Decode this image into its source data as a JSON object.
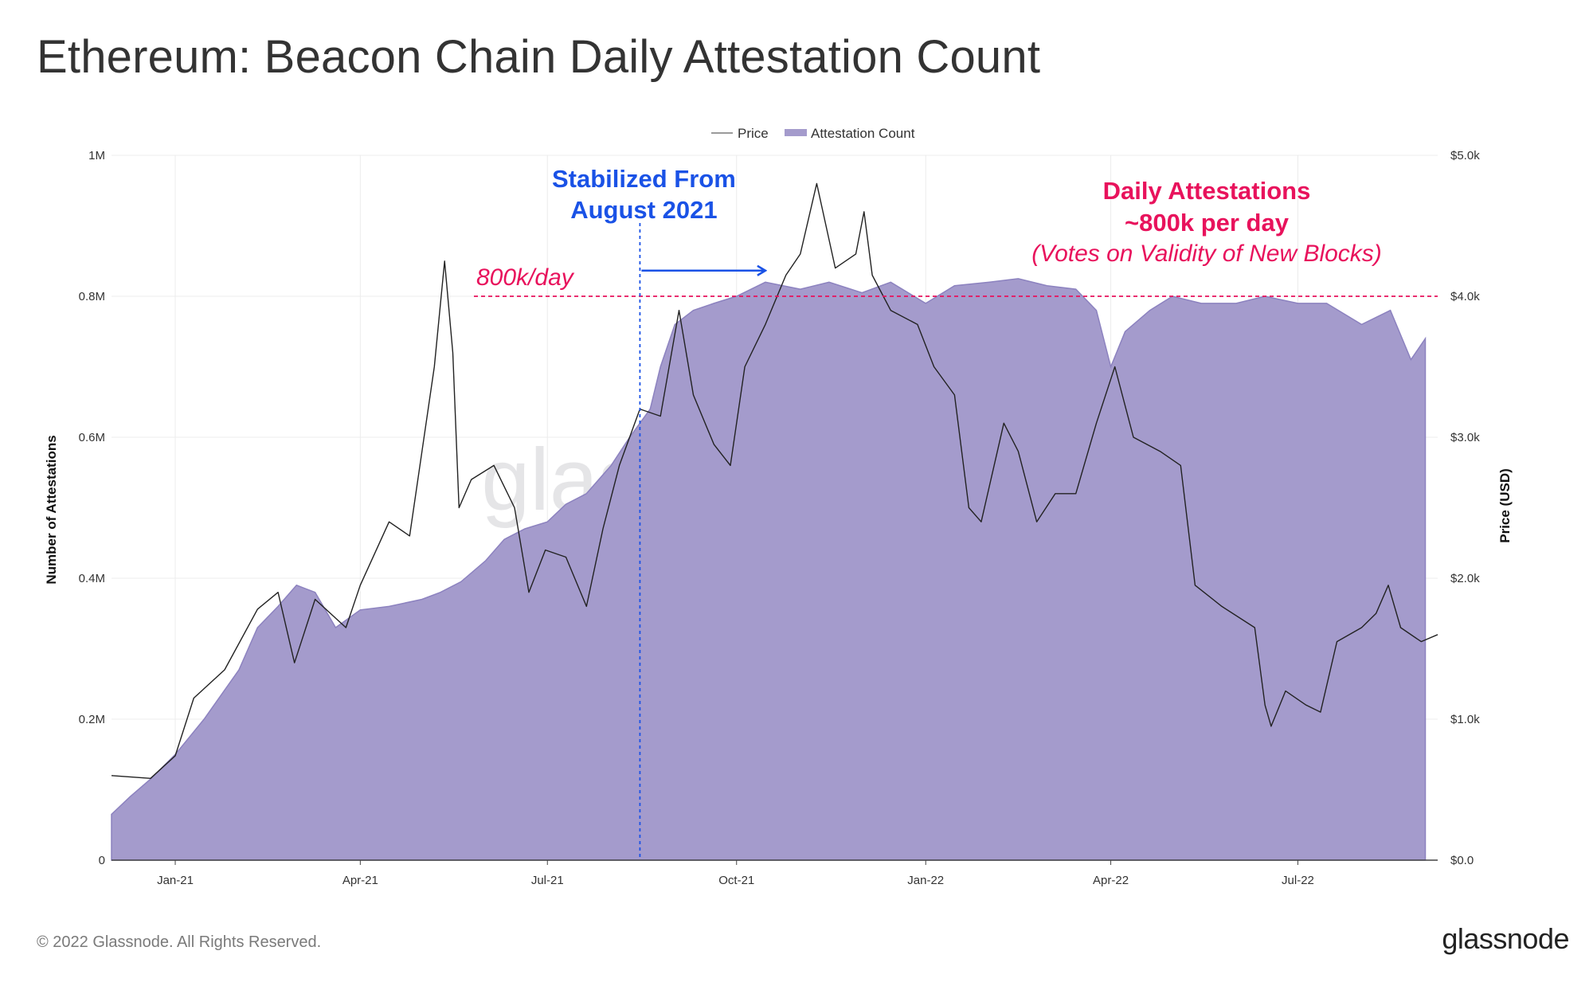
{
  "header": {
    "title": "Ethereum: Beacon Chain Daily Attestation Count"
  },
  "footer": {
    "copyright": "© 2022 Glassnode. All Rights Reserved.",
    "logo": "glassnode"
  },
  "watermark": "glassnode",
  "colors": {
    "area_fill": "#a49bcc",
    "area_stroke": "#8c82bf",
    "price_line": "#222222",
    "annotation_blue": "#1a52e6",
    "annotation_pink": "#e8125c",
    "grid": "#ececec"
  },
  "chart_data": {
    "type": "area",
    "title": "Ethereum: Beacon Chain Daily Attestation Count",
    "legend": {
      "position": "top-center",
      "items": [
        "Price",
        "Attestation Count"
      ]
    },
    "x_range": [
      "2020-12-01",
      "2022-09-07"
    ],
    "x_ticks": [
      {
        "date": "2021-01-01",
        "label": "Jan-21"
      },
      {
        "date": "2021-04-01",
        "label": "Apr-21"
      },
      {
        "date": "2021-07-01",
        "label": "Jul-21"
      },
      {
        "date": "2021-10-01",
        "label": "Oct-21"
      },
      {
        "date": "2022-01-01",
        "label": "Jan-22"
      },
      {
        "date": "2022-04-01",
        "label": "Apr-22"
      },
      {
        "date": "2022-07-01",
        "label": "Jul-22"
      }
    ],
    "y_left": {
      "label": "Number of Attestations",
      "min": 0,
      "max": 1000000,
      "ticks": [
        {
          "value": 0,
          "label": "0"
        },
        {
          "value": 200000,
          "label": "0.2M"
        },
        {
          "value": 400000,
          "label": "0.4M"
        },
        {
          "value": 600000,
          "label": "0.6M"
        },
        {
          "value": 800000,
          "label": "0.8M"
        },
        {
          "value": 1000000,
          "label": "1M"
        }
      ]
    },
    "y_right": {
      "label": "Price (USD)",
      "min": 0,
      "max": 5000,
      "ticks": [
        {
          "value": 0,
          "label": "$0.0"
        },
        {
          "value": 1000,
          "label": "$1.0k"
        },
        {
          "value": 2000,
          "label": "$2.0k"
        },
        {
          "value": 3000,
          "label": "$3.0k"
        },
        {
          "value": 4000,
          "label": "$4.0k"
        },
        {
          "value": 5000,
          "label": "$5.0k"
        }
      ]
    },
    "series": [
      {
        "name": "Attestation Count",
        "kind": "area",
        "axis": "left",
        "points": [
          [
            "2020-12-01",
            65000
          ],
          [
            "2020-12-10",
            90000
          ],
          [
            "2020-12-20",
            115000
          ],
          [
            "2021-01-01",
            150000
          ],
          [
            "2021-01-15",
            200000
          ],
          [
            "2021-02-01",
            270000
          ],
          [
            "2021-02-10",
            330000
          ],
          [
            "2021-02-20",
            360000
          ],
          [
            "2021-03-01",
            390000
          ],
          [
            "2021-03-10",
            380000
          ],
          [
            "2021-03-20",
            330000
          ],
          [
            "2021-04-01",
            355000
          ],
          [
            "2021-04-15",
            360000
          ],
          [
            "2021-05-01",
            370000
          ],
          [
            "2021-05-10",
            380000
          ],
          [
            "2021-05-20",
            395000
          ],
          [
            "2021-06-01",
            425000
          ],
          [
            "2021-06-10",
            455000
          ],
          [
            "2021-06-20",
            470000
          ],
          [
            "2021-07-01",
            480000
          ],
          [
            "2021-07-10",
            505000
          ],
          [
            "2021-07-20",
            520000
          ],
          [
            "2021-08-01",
            560000
          ],
          [
            "2021-08-10",
            600000
          ],
          [
            "2021-08-20",
            640000
          ],
          [
            "2021-08-25",
            700000
          ],
          [
            "2021-09-01",
            760000
          ],
          [
            "2021-09-10",
            780000
          ],
          [
            "2021-09-20",
            790000
          ],
          [
            "2021-10-01",
            800000
          ],
          [
            "2021-10-15",
            820000
          ],
          [
            "2021-11-01",
            810000
          ],
          [
            "2021-11-15",
            820000
          ],
          [
            "2021-12-01",
            805000
          ],
          [
            "2021-12-15",
            820000
          ],
          [
            "2022-01-01",
            790000
          ],
          [
            "2022-01-15",
            815000
          ],
          [
            "2022-02-01",
            820000
          ],
          [
            "2022-02-15",
            825000
          ],
          [
            "2022-03-01",
            815000
          ],
          [
            "2022-03-15",
            810000
          ],
          [
            "2022-03-25",
            780000
          ],
          [
            "2022-04-01",
            700000
          ],
          [
            "2022-04-08",
            750000
          ],
          [
            "2022-04-20",
            780000
          ],
          [
            "2022-05-01",
            800000
          ],
          [
            "2022-05-15",
            790000
          ],
          [
            "2022-06-01",
            790000
          ],
          [
            "2022-06-15",
            800000
          ],
          [
            "2022-07-01",
            790000
          ],
          [
            "2022-07-15",
            790000
          ],
          [
            "2022-08-01",
            760000
          ],
          [
            "2022-08-15",
            780000
          ],
          [
            "2022-08-25",
            710000
          ],
          [
            "2022-09-01",
            740000
          ]
        ]
      },
      {
        "name": "Price",
        "kind": "line",
        "axis": "right",
        "points": [
          [
            "2020-12-01",
            600
          ],
          [
            "2020-12-20",
            580
          ],
          [
            "2021-01-01",
            740
          ],
          [
            "2021-01-10",
            1150
          ],
          [
            "2021-01-25",
            1350
          ],
          [
            "2021-02-10",
            1780
          ],
          [
            "2021-02-20",
            1900
          ],
          [
            "2021-02-28",
            1400
          ],
          [
            "2021-03-10",
            1850
          ],
          [
            "2021-03-25",
            1650
          ],
          [
            "2021-04-01",
            1950
          ],
          [
            "2021-04-15",
            2400
          ],
          [
            "2021-04-25",
            2300
          ],
          [
            "2021-05-01",
            2900
          ],
          [
            "2021-05-07",
            3500
          ],
          [
            "2021-05-12",
            4250
          ],
          [
            "2021-05-16",
            3600
          ],
          [
            "2021-05-19",
            2500
          ],
          [
            "2021-05-25",
            2700
          ],
          [
            "2021-06-05",
            2800
          ],
          [
            "2021-06-15",
            2500
          ],
          [
            "2021-06-22",
            1900
          ],
          [
            "2021-06-30",
            2200
          ],
          [
            "2021-07-10",
            2150
          ],
          [
            "2021-07-20",
            1800
          ],
          [
            "2021-07-28",
            2350
          ],
          [
            "2021-08-05",
            2800
          ],
          [
            "2021-08-15",
            3200
          ],
          [
            "2021-08-25",
            3150
          ],
          [
            "2021-09-03",
            3900
          ],
          [
            "2021-09-10",
            3300
          ],
          [
            "2021-09-20",
            2950
          ],
          [
            "2021-09-28",
            2800
          ],
          [
            "2021-10-05",
            3500
          ],
          [
            "2021-10-15",
            3800
          ],
          [
            "2021-10-25",
            4150
          ],
          [
            "2021-11-01",
            4300
          ],
          [
            "2021-11-09",
            4800
          ],
          [
            "2021-11-18",
            4200
          ],
          [
            "2021-11-28",
            4300
          ],
          [
            "2021-12-02",
            4600
          ],
          [
            "2021-12-06",
            4150
          ],
          [
            "2021-12-15",
            3900
          ],
          [
            "2021-12-28",
            3800
          ],
          [
            "2022-01-05",
            3500
          ],
          [
            "2022-01-15",
            3300
          ],
          [
            "2022-01-22",
            2500
          ],
          [
            "2022-01-28",
            2400
          ],
          [
            "2022-02-08",
            3100
          ],
          [
            "2022-02-15",
            2900
          ],
          [
            "2022-02-24",
            2400
          ],
          [
            "2022-03-05",
            2600
          ],
          [
            "2022-03-15",
            2600
          ],
          [
            "2022-03-25",
            3100
          ],
          [
            "2022-04-03",
            3500
          ],
          [
            "2022-04-12",
            3000
          ],
          [
            "2022-04-25",
            2900
          ],
          [
            "2022-05-05",
            2800
          ],
          [
            "2022-05-12",
            1950
          ],
          [
            "2022-05-25",
            1800
          ],
          [
            "2022-06-10",
            1650
          ],
          [
            "2022-06-15",
            1100
          ],
          [
            "2022-06-18",
            950
          ],
          [
            "2022-06-25",
            1200
          ],
          [
            "2022-07-05",
            1100
          ],
          [
            "2022-07-12",
            1050
          ],
          [
            "2022-07-20",
            1550
          ],
          [
            "2022-08-01",
            1650
          ],
          [
            "2022-08-08",
            1750
          ],
          [
            "2022-08-14",
            1950
          ],
          [
            "2022-08-20",
            1650
          ],
          [
            "2022-08-30",
            1550
          ],
          [
            "2022-09-07",
            1600
          ]
        ]
      }
    ],
    "reference_line": {
      "value": 800000,
      "axis": "left",
      "label": "800k/day"
    },
    "marker_line": {
      "date": "2021-08-15",
      "label_lines": [
        "Stabilized From",
        "August 2021"
      ]
    },
    "arrow": {
      "from_date": "2021-08-15",
      "to_date": "2021-10-15",
      "value": 850000
    },
    "annotation": {
      "lines": [
        "Daily Attestations",
        "~800k per day",
        "(Votes on Validity of New Blocks)"
      ]
    }
  }
}
